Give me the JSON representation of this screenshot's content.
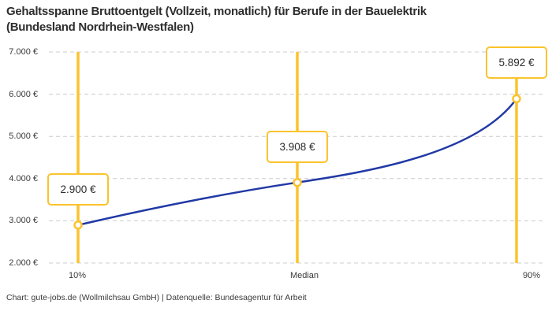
{
  "header": {
    "title_line1": "Gehaltsspanne Bruttoentgelt (Vollzeit, monatlich) für Berufe in der Bauelektrik",
    "title_line2": "(Bundesland Nordrhein-Westfalen)"
  },
  "footer": {
    "text": "Chart: gute-jobs.de (Wollmilchsau GmbH) | Datenquelle: Bundesagentur für Arbeit"
  },
  "chart_data": {
    "type": "line",
    "title": "Gehaltsspanne Bruttoentgelt (Vollzeit, monatlich) für Berufe in der Bauelektrik (Bundesland Nordrhein-Westfalen)",
    "categories": [
      "10%",
      "Median",
      "90%"
    ],
    "values": [
      2900,
      3908,
      5892
    ],
    "point_labels": [
      "2.900 €",
      "3.908 €",
      "5.892 €"
    ],
    "y_ticks": [
      {
        "value": 7000,
        "label": "7.000 €"
      },
      {
        "value": 6000,
        "label": "6.000 €"
      },
      {
        "value": 5000,
        "label": "5.000 €"
      },
      {
        "value": 4000,
        "label": "4.000 €"
      },
      {
        "value": 3000,
        "label": "3.000 €"
      },
      {
        "value": 2000,
        "label": "2.000 €"
      }
    ],
    "ylim": [
      2000,
      7000
    ],
    "grid": "horizontal-dashed",
    "legend": "none",
    "marker_style": "open-circle",
    "colors": {
      "accent": "#FBC32C",
      "line": "#2139A5",
      "grid": "#CCCCCC",
      "text": "#3A3A3A",
      "title_text": "#2D2D2D",
      "box_bg": "#FFFFFF"
    }
  }
}
